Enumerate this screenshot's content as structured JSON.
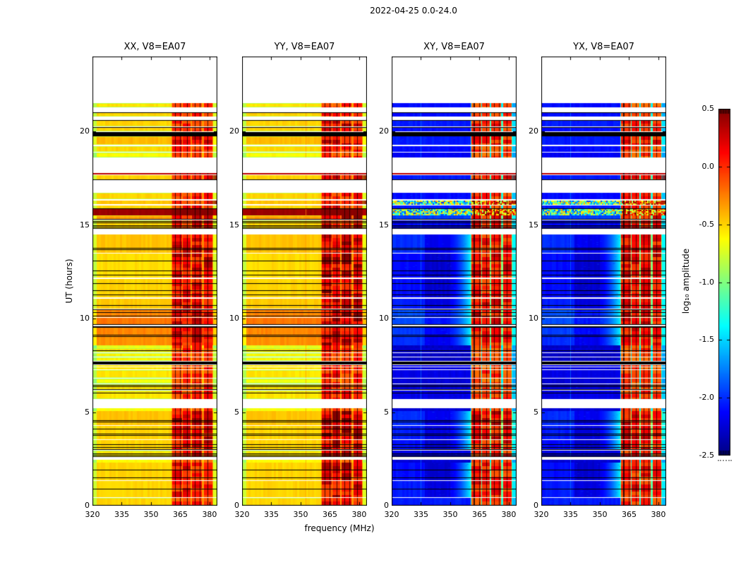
{
  "chart_data": {
    "type": "heatmap",
    "title": "2022-04-25 0.0-24.0",
    "xlabel": "frequency (MHz)",
    "ylabel": "UT (hours)",
    "x_range": [
      320,
      384
    ],
    "y_range": [
      0,
      24
    ],
    "x_ticks": [
      320,
      335,
      350,
      365,
      380
    ],
    "y_ticks": [
      0,
      5,
      10,
      15,
      20
    ],
    "colormap": "jet",
    "panels": [
      {
        "label": "XX, V8=EA07",
        "pol": "XX",
        "kind": "par",
        "rfi_gain": 1.0,
        "seed": 1
      },
      {
        "label": "YY, V8=EA07",
        "pol": "YY",
        "kind": "par",
        "rfi_gain": 1.15,
        "seed": 2,
        "vline": {
          "f": 352.5,
          "amp": -0.3
        }
      },
      {
        "label": "XY, V8=EA07",
        "pol": "XY",
        "kind": "cross",
        "rfi_gain": 0.95,
        "seed": 3,
        "vline": {
          "f": 335.0,
          "amp": -1.75
        }
      },
      {
        "label": "YX, V8=EA07",
        "pol": "YX",
        "kind": "cross",
        "rfi_gain": 0.95,
        "seed": 4,
        "vline": {
          "f": 335.0,
          "amp": -1.75
        }
      }
    ],
    "colorbar": {
      "label": "log₁₀ amplitude",
      "ticks": [
        0.5,
        0.0,
        -0.5,
        -1.0,
        -1.5,
        -2.0,
        -2.5
      ],
      "range": [
        -2.5,
        0.5
      ]
    },
    "rfi": {
      "f_start": 360.5,
      "f_end": 382,
      "columns": [
        [
          361,
          365.8
        ],
        [
          366.4,
          370.2
        ],
        [
          370.9,
          376.2
        ],
        [
          377,
          381.5
        ]
      ],
      "dark_lines": [
        362.2,
        364.9,
        368.3,
        372.6,
        374.8,
        378.9
      ],
      "right_strip": [
        382,
        384
      ]
    },
    "bands": [
      [
        21.3,
        21.5,
        -0.55,
        -2.1,
        0.5,
        ""
      ],
      [
        20.78,
        21.02,
        -0.5,
        -2.1,
        0.55,
        ""
      ],
      [
        20.28,
        20.6,
        -0.5,
        -2.05,
        0.7,
        ""
      ],
      [
        20.0,
        20.22,
        -0.5,
        -2.1,
        0.6,
        ""
      ],
      [
        19.3,
        19.73,
        -0.42,
        -2.05,
        0.75,
        ""
      ],
      [
        18.92,
        19.22,
        -0.5,
        -2.1,
        0.6,
        ""
      ],
      [
        18.62,
        18.87,
        -0.62,
        -2.15,
        0.5,
        ""
      ],
      [
        17.68,
        17.76,
        -0.1,
        -1.9,
        0.85,
        "r"
      ],
      [
        17.45,
        17.66,
        -0.5,
        -2.05,
        0.7,
        "s"
      ],
      [
        16.38,
        16.7,
        -0.5,
        -2.1,
        0.6,
        ""
      ],
      [
        16.12,
        16.32,
        -0.45,
        -1.9,
        0.7,
        "sp"
      ],
      [
        15.9,
        16.05,
        -0.5,
        -2.05,
        0.6,
        ""
      ],
      [
        15.52,
        15.88,
        0.42,
        -1.2,
        0.95,
        "m"
      ],
      [
        15.28,
        15.5,
        -0.35,
        -1.95,
        0.8,
        ""
      ],
      [
        14.78,
        15.24,
        -0.5,
        -2.1,
        0.7,
        ""
      ],
      [
        13.52,
        14.5,
        -0.45,
        -2.1,
        0.8,
        "g"
      ],
      [
        12.17,
        13.47,
        -0.52,
        -2.2,
        0.85,
        "g"
      ],
      [
        11.12,
        12.12,
        -0.5,
        -2.2,
        0.8,
        "g"
      ],
      [
        10.52,
        11.07,
        -0.47,
        -2.15,
        0.8,
        "g"
      ],
      [
        10.07,
        10.5,
        -0.27,
        -2.0,
        0.85,
        "g"
      ],
      [
        9.65,
        10.05,
        -0.22,
        -2.0,
        0.8,
        "g"
      ],
      [
        9.12,
        9.5,
        -0.27,
        -2.05,
        0.8,
        "g"
      ],
      [
        8.57,
        9.08,
        -0.3,
        -2.1,
        0.8,
        "g"
      ],
      [
        8.42,
        8.55,
        -0.7,
        -2.3,
        0.5,
        ""
      ],
      [
        8.2,
        8.4,
        -0.55,
        -2.25,
        0.55,
        ""
      ],
      [
        7.95,
        8.16,
        -0.6,
        -2.3,
        0.5,
        ""
      ],
      [
        7.73,
        7.92,
        -0.6,
        -2.3,
        0.5,
        ""
      ],
      [
        7.44,
        7.52,
        -0.55,
        -2.2,
        0.5,
        ""
      ],
      [
        7.28,
        7.41,
        -0.55,
        -2.2,
        0.55,
        ""
      ],
      [
        6.82,
        7.24,
        -0.55,
        -2.2,
        0.6,
        ""
      ],
      [
        6.52,
        6.78,
        -0.65,
        -2.25,
        0.5,
        ""
      ],
      [
        6.18,
        6.48,
        -0.55,
        -2.2,
        0.6,
        ""
      ],
      [
        5.68,
        6.14,
        -0.55,
        -2.2,
        0.65,
        ""
      ],
      [
        5.06,
        5.2,
        -0.65,
        -2.25,
        0.5,
        ""
      ],
      [
        4.32,
        5.04,
        -0.45,
        -2.1,
        0.9,
        "g"
      ],
      [
        3.56,
        4.27,
        -0.5,
        -2.15,
        0.85,
        "g"
      ],
      [
        2.98,
        3.52,
        -0.5,
        -2.2,
        0.8,
        "g"
      ],
      [
        2.62,
        2.95,
        -0.55,
        -2.2,
        0.7,
        ""
      ],
      [
        2.32,
        2.47,
        -0.62,
        -2.25,
        0.5,
        ""
      ],
      [
        1.35,
        2.3,
        -0.5,
        -2.2,
        0.75,
        "g"
      ],
      [
        0.47,
        1.32,
        -0.5,
        -2.15,
        0.75,
        "g"
      ],
      [
        0.0,
        0.42,
        -0.5,
        -2.05,
        0.6,
        ""
      ]
    ],
    "black_bands": [
      [
        19.75,
        19.97
      ],
      [
        9.5,
        9.6
      ],
      [
        7.54,
        7.7
      ]
    ],
    "black_lines": [
      21.02,
      20.6,
      20.22,
      17.44,
      15.9,
      15.33,
      15.22,
      15.12,
      15.0,
      14.9,
      14.82,
      13.78,
      13.7,
      13.1,
      12.55,
      12.35,
      11.9,
      11.5,
      11.3,
      10.72,
      10.5,
      10.35,
      10.15,
      9.7,
      9.15,
      9.05,
      8.3,
      6.45,
      6.37,
      6.22,
      6.05,
      4.57,
      4.5,
      4.1,
      3.85,
      3.77,
      3.3,
      3.12,
      3.03,
      2.8,
      2.72,
      2.64,
      1.92,
      1.52,
      0.92
    ]
  }
}
